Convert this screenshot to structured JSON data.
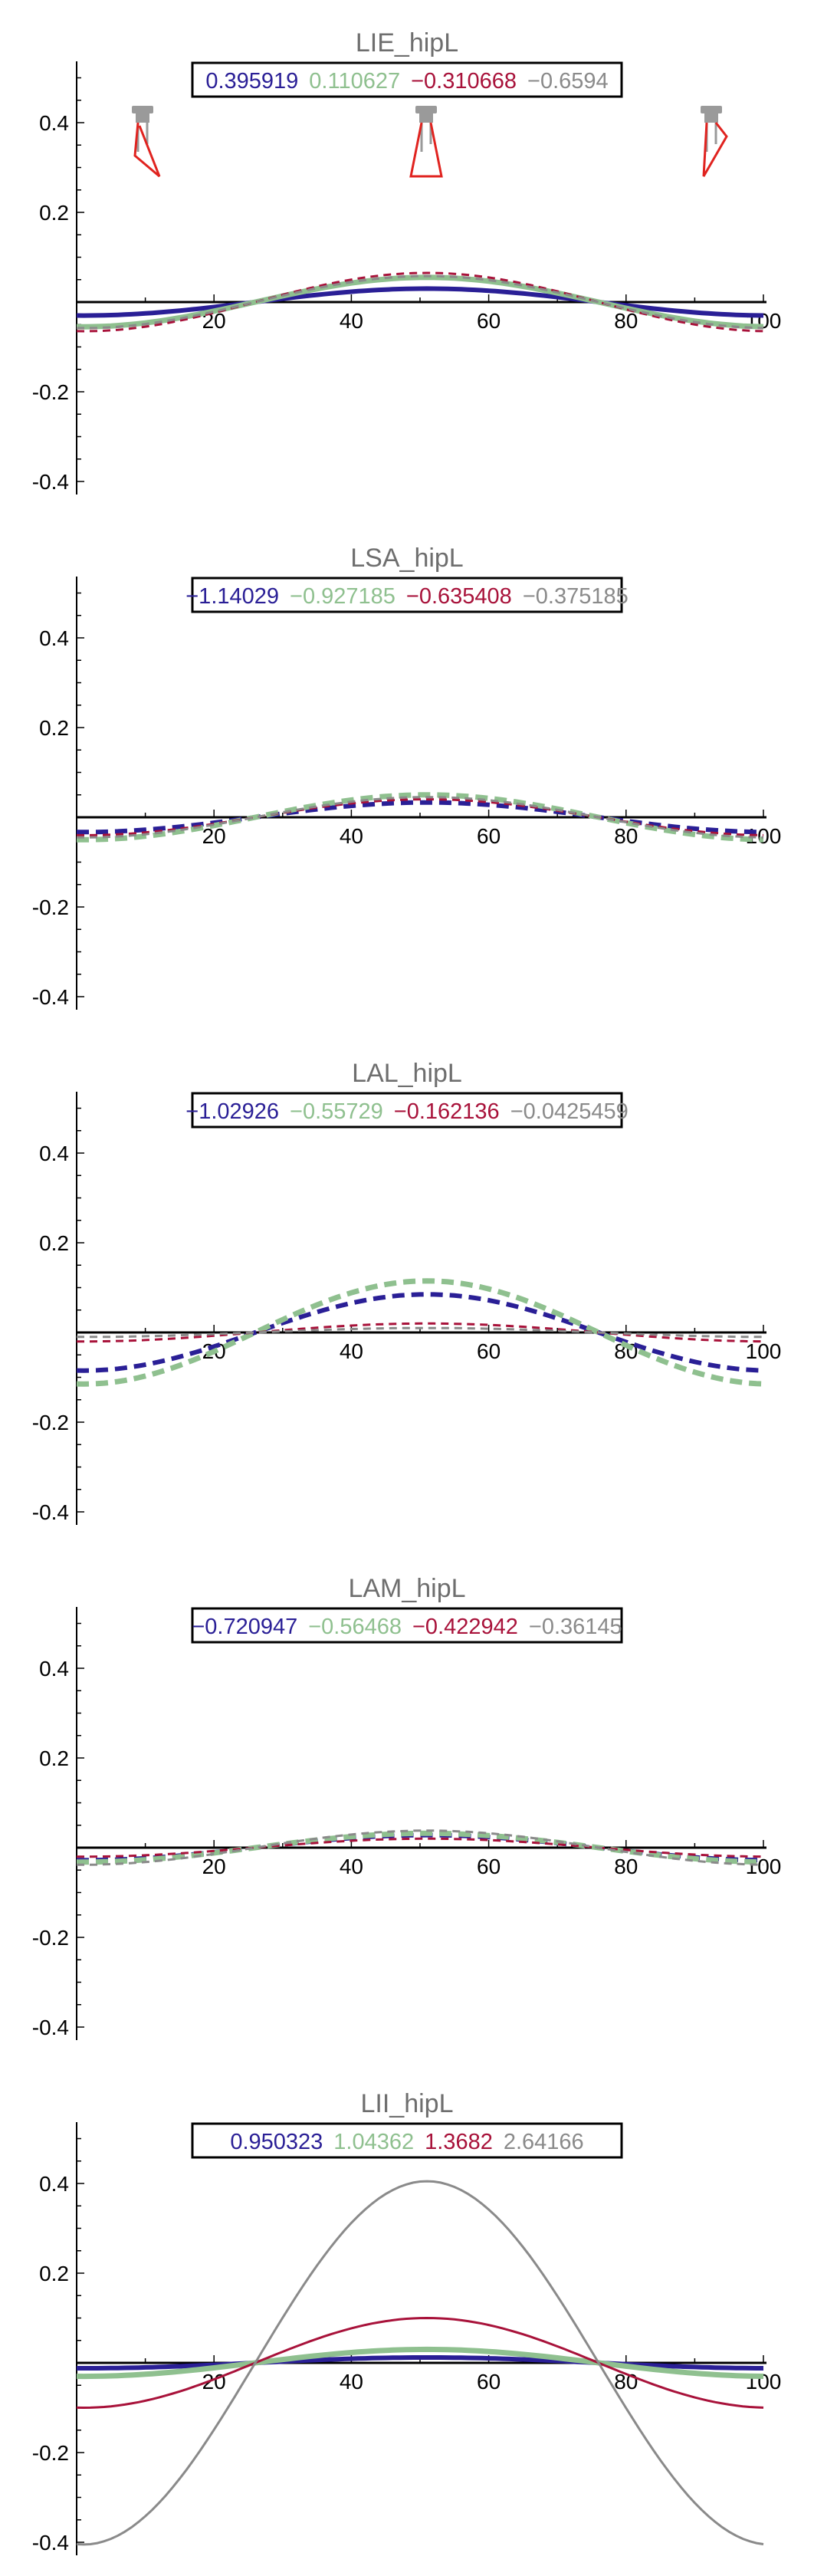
{
  "chart_data": [
    {
      "type": "line",
      "title": "LIE_hipL",
      "legend": [
        "0.395919",
        "0.110627",
        "−0.310668",
        "−0.6594"
      ],
      "colors": [
        "#2a1f96",
        "#8fc08f",
        "#a8123a",
        "#8a8a8a"
      ],
      "styles": [
        "solid",
        "solid",
        "dashed",
        "dashed"
      ],
      "amplitudes": [
        0.03,
        0.055,
        0.065,
        0.058
      ],
      "xlim": [
        0,
        100
      ],
      "ylim": [
        -0.42,
        0.52
      ],
      "x_ticks": [
        "20",
        "40",
        "60",
        "80",
        "100"
      ],
      "y_ticks": [
        "0.4",
        "0.2",
        "-0.2",
        "-0.4"
      ],
      "has_skeleton_icons": true
    },
    {
      "type": "line",
      "title": "LSA_hipL",
      "legend": [
        "−1.14029",
        "−0.927185",
        "−0.635408",
        "−0.375185"
      ],
      "colors": [
        "#2a1f96",
        "#8fc08f",
        "#a8123a",
        "#8a8a8a"
      ],
      "styles": [
        "dashed",
        "dashed",
        "dashed",
        "dashed"
      ],
      "amplitudes": [
        0.033,
        0.05,
        0.04,
        0.045
      ],
      "xlim": [
        0,
        100
      ],
      "ylim": [
        -0.42,
        0.52
      ],
      "x_ticks": [
        "20",
        "40",
        "60",
        "80",
        "100"
      ],
      "y_ticks": [
        "0.4",
        "0.2",
        "-0.2",
        "-0.4"
      ]
    },
    {
      "type": "line",
      "title": "LAL_hipL",
      "legend": [
        "−1.02926",
        "−0.55729",
        "−0.162136",
        "−0.0425459"
      ],
      "colors": [
        "#2a1f96",
        "#8fc08f",
        "#a8123a",
        "#8a8a8a"
      ],
      "styles": [
        "dashed",
        "dashed",
        "dashed",
        "dashed"
      ],
      "amplitudes": [
        0.085,
        0.115,
        0.02,
        0.01
      ],
      "xlim": [
        0,
        100
      ],
      "ylim": [
        -0.42,
        0.52
      ],
      "x_ticks": [
        "20",
        "40",
        "60",
        "80",
        "100"
      ],
      "y_ticks": [
        "0.4",
        "0.2",
        "-0.2",
        "-0.4"
      ]
    },
    {
      "type": "line",
      "title": "LAM_hipL",
      "legend": [
        "−0.720947",
        "−0.56468",
        "−0.422942",
        "−0.36145"
      ],
      "colors": [
        "#2a1f96",
        "#8fc08f",
        "#a8123a",
        "#8a8a8a"
      ],
      "styles": [
        "dashed",
        "dashed",
        "dashed",
        "dashed"
      ],
      "amplitudes": [
        0.028,
        0.032,
        0.02,
        0.038
      ],
      "xlim": [
        0,
        100
      ],
      "ylim": [
        -0.42,
        0.52
      ],
      "x_ticks": [
        "20",
        "40",
        "60",
        "80",
        "100"
      ],
      "y_ticks": [
        "0.4",
        "0.2",
        "-0.2",
        "-0.4"
      ]
    },
    {
      "type": "line",
      "title": "LII_hipL",
      "legend": [
        "0.950323",
        "1.04362",
        "1.3682",
        "2.64166"
      ],
      "colors": [
        "#2a1f96",
        "#8fc08f",
        "#a8123a",
        "#8a8a8a"
      ],
      "styles": [
        "solid",
        "solid",
        "solid",
        "solid"
      ],
      "amplitudes": [
        0.012,
        0.03,
        0.1,
        0.405
      ],
      "xlim": [
        0,
        100
      ],
      "ylim": [
        -0.42,
        0.52
      ],
      "x_ticks": [
        "20",
        "40",
        "60",
        "80",
        "100"
      ],
      "y_ticks": [
        "0.4",
        "0.2",
        "-0.2",
        "-0.4"
      ]
    }
  ]
}
